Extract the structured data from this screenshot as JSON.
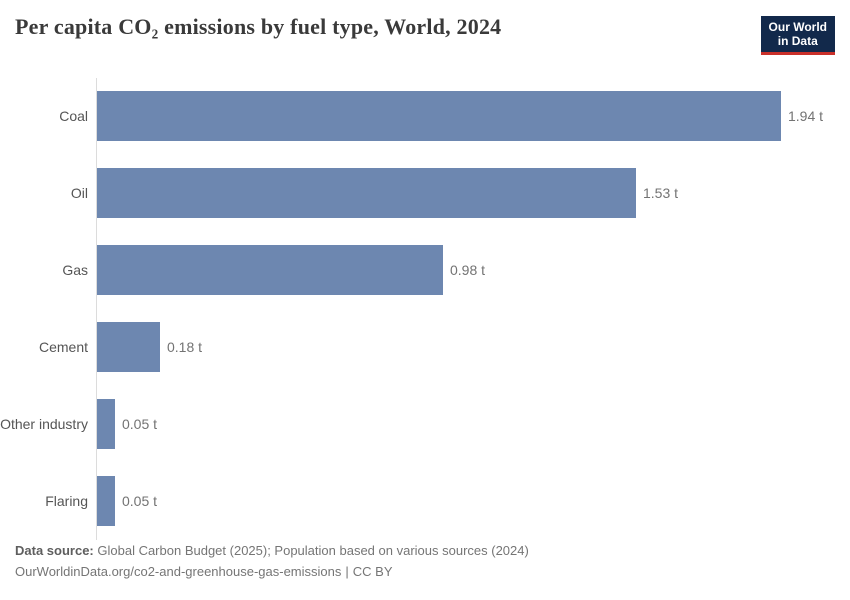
{
  "header": {
    "title": "Per capita CO₂ emissions by fuel type, World, 2024",
    "logo": {
      "line1": "Our World",
      "line2": "in Data",
      "bg_color": "#12294b",
      "accent_color": "#c9302a"
    }
  },
  "chart_data": {
    "type": "bar",
    "orientation": "horizontal",
    "title": "Per capita CO₂ emissions by fuel type, World, 2024",
    "categories": [
      "Coal",
      "Oil",
      "Gas",
      "Cement",
      "Other industry",
      "Flaring"
    ],
    "values": [
      1.94,
      1.53,
      0.98,
      0.18,
      0.05,
      0.05
    ],
    "value_labels": [
      "1.94 t",
      "1.53 t",
      "0.98 t",
      "0.18 t",
      "0.05 t",
      "0.05 t"
    ],
    "unit": "t",
    "xlim": [
      0,
      1.94
    ],
    "bar_color": "#6d87b0",
    "axis_line_color": "#dcdcdc",
    "grid": false,
    "legend": false
  },
  "footer": {
    "source_label": "Data source:",
    "source_text": "Global Carbon Budget (2025); Population based on various sources (2024)",
    "url": "OurWorldinData.org/co2-and-greenhouse-gas-emissions",
    "separator": "|",
    "license": "CC BY"
  }
}
